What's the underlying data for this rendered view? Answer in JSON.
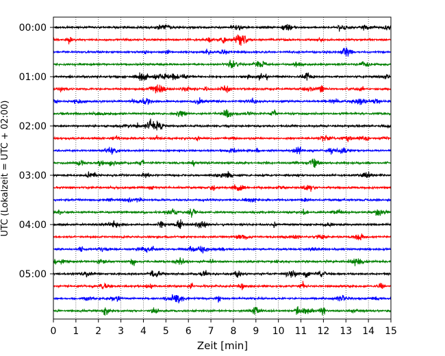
{
  "chart_data": {
    "type": "line",
    "title": "",
    "xlabel": "Zeit  [min]",
    "ylabel": "UTC (Lokalzeit = UTC + 02:00)",
    "xlim": [
      0,
      15
    ],
    "x_ticks": [
      0,
      1,
      2,
      3,
      4,
      5,
      6,
      7,
      8,
      9,
      10,
      11,
      12,
      13,
      14,
      15
    ],
    "x_tick_labels": [
      "0",
      "1",
      "2",
      "3",
      "4",
      "5",
      "6",
      "7",
      "8",
      "9",
      "10",
      "11",
      "12",
      "13",
      "14",
      "15"
    ],
    "y_tick_labels": [
      "00:00",
      "01:00",
      "02:00",
      "03:00",
      "04:00",
      "05:00"
    ],
    "y_ticks_trace_index": [
      0,
      4,
      8,
      12,
      16,
      20
    ],
    "trace_count": 24,
    "trace_interval_minutes": 15,
    "grid": "vertical dotted",
    "trace_colors": [
      "#000000",
      "#ff0000",
      "#0000ff",
      "#008000"
    ]
  }
}
